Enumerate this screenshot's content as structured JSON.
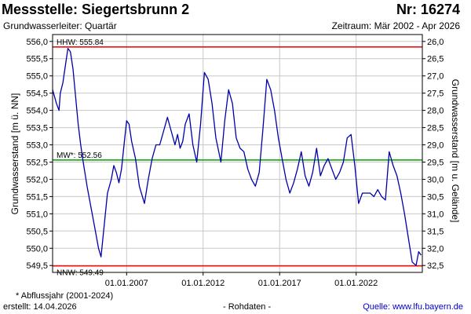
{
  "header": {
    "station": "Messstelle: Siegertsbrunn 2",
    "number": "Nr: 16274",
    "aquifer": "Grundwasserleiter: Quartär",
    "period": "Zeitraum: Mär 2002 - Apr 2026"
  },
  "footer": {
    "note": "* Abflussjahr (2001-2024)",
    "created": "erstellt:  14.04.2026",
    "raw": "- Rohdaten -",
    "source_label": "Quelle: ",
    "source_link": "www.lfu.bayern.de"
  },
  "chart_data": {
    "type": "line",
    "title": "Messstelle: Siegertsbrunn 2",
    "ylabel_left": "Grundwasserstand [m ü. NN]",
    "ylabel_right": "Grundwasserstand [m u. Gelände]",
    "ylim": [
      549.3,
      556.2
    ],
    "y2lim": [
      32.7,
      25.8
    ],
    "xlim": [
      "2002-03-01",
      "2026-04-30"
    ],
    "left_ticks": [
      "549,5",
      "550,0",
      "550,5",
      "551,0",
      "551,5",
      "552,0",
      "552,5",
      "553,0",
      "553,5",
      "554,0",
      "554,5",
      "555,0",
      "555,5",
      "556,0"
    ],
    "right_ticks": [
      "32,5",
      "32,0",
      "31,5",
      "31,0",
      "30,5",
      "30,0",
      "29,5",
      "29,0",
      "28,5",
      "28,0",
      "27,5",
      "27,0",
      "26,5",
      "26,0"
    ],
    "x_ticks": [
      "01.01.2007",
      "01.01.2012",
      "01.01.2017",
      "01.01.2022"
    ],
    "grid": true,
    "reference_lines": [
      {
        "label": "HHW: 555.84",
        "value": 555.84,
        "color": "#ee1111"
      },
      {
        "label": "MW*: 552.56",
        "value": 552.56,
        "color": "#11aa11"
      },
      {
        "label": "NNW: 549.49",
        "value": 549.49,
        "color": "#ee1111"
      }
    ],
    "series": [
      {
        "color": "#0000aa",
        "points": [
          [
            "2002-03-01",
            554.6
          ],
          [
            "2002-06-01",
            554.2
          ],
          [
            "2002-08-01",
            554.0
          ],
          [
            "2002-09-01",
            554.5
          ],
          [
            "2002-11-01",
            554.8
          ],
          [
            "2003-01-01",
            555.3
          ],
          [
            "2003-03-01",
            555.8
          ],
          [
            "2003-05-01",
            555.7
          ],
          [
            "2003-07-01",
            555.2
          ],
          [
            "2003-09-01",
            554.4
          ],
          [
            "2003-11-01",
            553.6
          ],
          [
            "2004-01-01",
            553.0
          ],
          [
            "2004-03-01",
            552.5
          ],
          [
            "2004-06-01",
            551.8
          ],
          [
            "2004-09-01",
            551.2
          ],
          [
            "2004-12-01",
            550.6
          ],
          [
            "2005-03-01",
            550.0
          ],
          [
            "2005-05-01",
            549.75
          ],
          [
            "2005-07-01",
            550.5
          ],
          [
            "2005-10-01",
            551.6
          ],
          [
            "2006-01-01",
            552.0
          ],
          [
            "2006-03-01",
            552.4
          ],
          [
            "2006-05-01",
            552.2
          ],
          [
            "2006-07-01",
            551.9
          ],
          [
            "2006-09-01",
            552.3
          ],
          [
            "2006-11-01",
            553.0
          ],
          [
            "2007-01-01",
            553.7
          ],
          [
            "2007-03-01",
            553.6
          ],
          [
            "2007-05-01",
            553.1
          ],
          [
            "2007-08-01",
            552.6
          ],
          [
            "2007-11-01",
            551.8
          ],
          [
            "2008-03-01",
            551.3
          ],
          [
            "2008-06-01",
            552.0
          ],
          [
            "2008-09-01",
            552.6
          ],
          [
            "2008-12-01",
            553.0
          ],
          [
            "2009-03-01",
            553.0
          ],
          [
            "2009-06-01",
            553.4
          ],
          [
            "2009-09-01",
            553.8
          ],
          [
            "2009-12-01",
            553.4
          ],
          [
            "2010-03-01",
            553.0
          ],
          [
            "2010-05-01",
            553.3
          ],
          [
            "2010-07-01",
            552.9
          ],
          [
            "2010-09-01",
            553.1
          ],
          [
            "2010-11-01",
            553.6
          ],
          [
            "2011-02-01",
            553.9
          ],
          [
            "2011-05-01",
            553.0
          ],
          [
            "2011-08-01",
            552.5
          ],
          [
            "2011-11-01",
            553.6
          ],
          [
            "2012-02-01",
            555.1
          ],
          [
            "2012-05-01",
            554.9
          ],
          [
            "2012-08-01",
            554.2
          ],
          [
            "2012-11-01",
            553.2
          ],
          [
            "2013-03-01",
            552.5
          ],
          [
            "2013-06-01",
            553.7
          ],
          [
            "2013-09-01",
            554.6
          ],
          [
            "2013-12-01",
            554.2
          ],
          [
            "2014-03-01",
            553.2
          ],
          [
            "2014-06-01",
            552.9
          ],
          [
            "2014-09-01",
            552.8
          ],
          [
            "2014-12-01",
            552.3
          ],
          [
            "2015-03-01",
            552.0
          ],
          [
            "2015-06-01",
            551.8
          ],
          [
            "2015-09-01",
            552.2
          ],
          [
            "2015-12-01",
            553.5
          ],
          [
            "2016-03-01",
            554.9
          ],
          [
            "2016-06-01",
            554.6
          ],
          [
            "2016-09-01",
            554.0
          ],
          [
            "2016-12-01",
            553.2
          ],
          [
            "2017-03-01",
            552.6
          ],
          [
            "2017-06-01",
            552.0
          ],
          [
            "2017-09-01",
            551.6
          ],
          [
            "2017-12-01",
            551.9
          ],
          [
            "2018-03-01",
            552.3
          ],
          [
            "2018-06-01",
            552.8
          ],
          [
            "2018-09-01",
            552.1
          ],
          [
            "2018-12-01",
            551.8
          ],
          [
            "2019-03-01",
            552.2
          ],
          [
            "2019-06-01",
            552.9
          ],
          [
            "2019-09-01",
            552.1
          ],
          [
            "2019-12-01",
            552.4
          ],
          [
            "2020-03-01",
            552.6
          ],
          [
            "2020-06-01",
            552.3
          ],
          [
            "2020-09-01",
            552.0
          ],
          [
            "2020-12-01",
            552.2
          ],
          [
            "2021-03-01",
            552.5
          ],
          [
            "2021-06-01",
            553.2
          ],
          [
            "2021-09-01",
            553.3
          ],
          [
            "2021-12-01",
            552.4
          ],
          [
            "2022-03-01",
            551.3
          ],
          [
            "2022-06-01",
            551.6
          ],
          [
            "2022-09-01",
            551.6
          ],
          [
            "2022-12-01",
            551.6
          ],
          [
            "2023-03-01",
            551.5
          ],
          [
            "2023-06-01",
            551.7
          ],
          [
            "2023-09-01",
            551.5
          ],
          [
            "2023-12-01",
            551.4
          ],
          [
            "2024-03-01",
            552.8
          ],
          [
            "2024-06-01",
            552.4
          ],
          [
            "2024-09-01",
            552.1
          ],
          [
            "2024-12-01",
            551.6
          ],
          [
            "2025-03-01",
            551.0
          ],
          [
            "2025-06-01",
            550.3
          ],
          [
            "2025-09-01",
            549.6
          ],
          [
            "2025-12-01",
            549.5
          ],
          [
            "2026-02-01",
            549.9
          ],
          [
            "2026-04-01",
            549.8
          ]
        ]
      }
    ]
  }
}
